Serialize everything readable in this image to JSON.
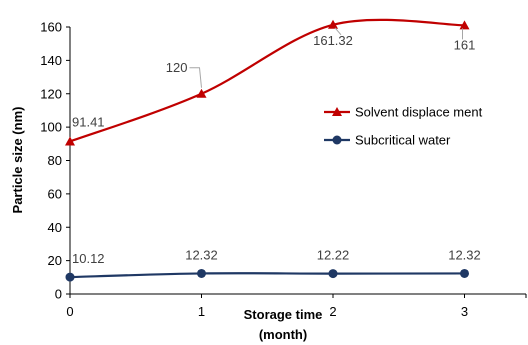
{
  "chart_data": {
    "type": "line",
    "title": "",
    "xlabel_line1": "Storage time",
    "xlabel_line2": "(month)",
    "ylabel": "Particle size (nm)",
    "x": [
      0,
      1,
      2,
      3
    ],
    "x_ticks": [
      "0",
      "1",
      "2",
      "3"
    ],
    "y_ticks": [
      "0",
      "20",
      "40",
      "60",
      "80",
      "100",
      "120",
      "140",
      "160"
    ],
    "xlim": [
      0,
      3.5
    ],
    "ylim": [
      0,
      170
    ],
    "grid": false,
    "legend_position": "right",
    "series": [
      {
        "name": "Solvent displace ment",
        "values": [
          91.41,
          120,
          161.32,
          161
        ],
        "labels": [
          "91.41",
          "120",
          "161.32",
          "161"
        ],
        "color": "#c00000",
        "marker": "triangle",
        "smooth": true
      },
      {
        "name": "Subcritical water",
        "values": [
          10.12,
          12.32,
          12.22,
          12.32
        ],
        "labels": [
          "10.12",
          "12.32",
          "12.22",
          "12.32"
        ],
        "color": "#1f3864",
        "marker": "circle",
        "smooth": true
      }
    ]
  }
}
